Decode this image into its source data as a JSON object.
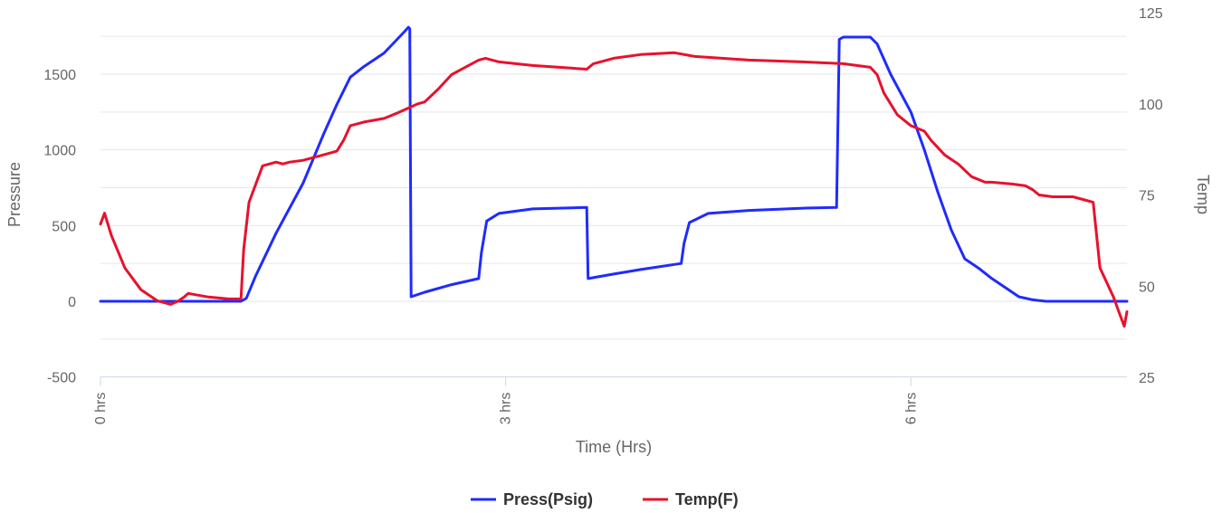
{
  "chart_data": {
    "type": "line",
    "title": "",
    "xlabel": "Time (Hrs)",
    "ylabel_left": "Pressure",
    "ylabel_right": "Temp",
    "x_ticks": [
      0,
      3,
      6
    ],
    "x_tick_labels": [
      "0 hrs",
      "3 hrs",
      "6 hrs"
    ],
    "x_range": [
      0,
      7.6
    ],
    "y_left": {
      "range": [
        -500,
        1750
      ],
      "ticks": [
        -500,
        0,
        500,
        1000,
        1500
      ],
      "tick_labels": [
        "-500",
        "0",
        "500",
        "1000",
        "1500"
      ]
    },
    "y_right": {
      "range": [
        25,
        125
      ],
      "ticks": [
        25,
        50,
        75,
        100,
        125
      ],
      "tick_labels": [
        "25",
        "50",
        "75",
        "100",
        "125"
      ]
    },
    "grid": true,
    "legend_position": "bottom-center",
    "series": [
      {
        "name": "Press(Psig)",
        "axis": "left",
        "color": "#1f2bff",
        "x": [
          0,
          0.5,
          1.04,
          1.08,
          1.15,
          1.3,
          1.5,
          1.65,
          1.75,
          1.85,
          1.95,
          2.1,
          2.25,
          2.28,
          2.29,
          2.3,
          2.4,
          2.6,
          2.8,
          2.82,
          2.86,
          2.95,
          3.2,
          3.6,
          3.61,
          3.8,
          4.0,
          4.3,
          4.32,
          4.36,
          4.5,
          4.8,
          5.2,
          5.45,
          5.47,
          5.5,
          5.7,
          5.75,
          5.85,
          6.0,
          6.1,
          6.2,
          6.3,
          6.4,
          6.5,
          6.6,
          6.7,
          6.8,
          6.9,
          7.0,
          7.2,
          7.4,
          7.6
        ],
        "y": [
          0,
          0,
          0,
          20,
          170,
          450,
          780,
          1100,
          1300,
          1480,
          1550,
          1640,
          1780,
          1810,
          1800,
          30,
          60,
          110,
          150,
          320,
          530,
          580,
          610,
          620,
          150,
          180,
          210,
          250,
          380,
          520,
          580,
          600,
          615,
          620,
          1730,
          1745,
          1745,
          1700,
          1500,
          1250,
          1000,
          720,
          470,
          280,
          220,
          150,
          90,
          30,
          10,
          0,
          0,
          0,
          0
        ]
      },
      {
        "name": "Temp(F)",
        "axis": "right",
        "color": "#e8112d",
        "x": [
          0,
          0.03,
          0.08,
          0.18,
          0.3,
          0.42,
          0.52,
          0.58,
          0.62,
          0.65,
          0.8,
          0.95,
          1.04,
          1.06,
          1.1,
          1.2,
          1.3,
          1.35,
          1.4,
          1.5,
          1.6,
          1.65,
          1.75,
          1.8,
          1.85,
          1.95,
          2.1,
          2.2,
          2.35,
          2.4,
          2.5,
          2.6,
          2.8,
          2.85,
          2.95,
          3.2,
          3.4,
          3.6,
          3.65,
          3.8,
          4.0,
          4.25,
          4.4,
          4.8,
          5.2,
          5.5,
          5.6,
          5.7,
          5.75,
          5.8,
          5.9,
          6.0,
          6.1,
          6.15,
          6.25,
          6.35,
          6.45,
          6.55,
          6.6,
          6.75,
          6.85,
          6.9,
          6.95,
          7.05,
          7.2,
          7.25,
          7.3,
          7.35,
          7.4,
          7.5,
          7.55,
          7.58,
          7.6
        ],
        "y": [
          67,
          70,
          64,
          55,
          49,
          46,
          45,
          46,
          47,
          48,
          47,
          46.5,
          46.5,
          60,
          73,
          83,
          84,
          83.5,
          84,
          84.5,
          85.5,
          86,
          87,
          90,
          94,
          95,
          96,
          97.5,
          100,
          100.5,
          104,
          108,
          112,
          112.5,
          111.5,
          110.5,
          110,
          109.5,
          111,
          112.5,
          113.5,
          114,
          113,
          112,
          111.5,
          111,
          110.5,
          110,
          108,
          103,
          97,
          94,
          92.5,
          90,
          86,
          83.5,
          80,
          78.5,
          78.5,
          78,
          77.5,
          76.5,
          75,
          74.5,
          74.5,
          74,
          73.5,
          73,
          55,
          47,
          42,
          39,
          43
        ]
      }
    ]
  }
}
